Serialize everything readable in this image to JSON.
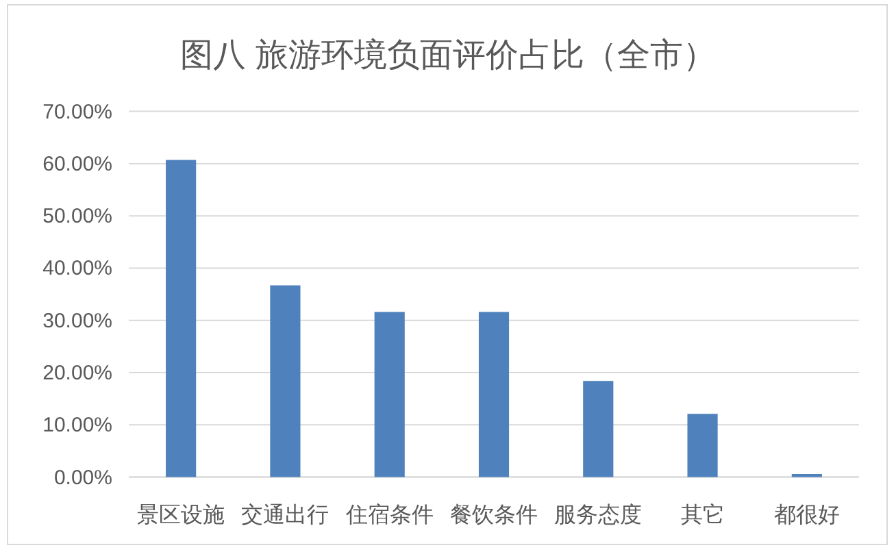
{
  "chart_data": {
    "type": "bar",
    "title": "图八  旅游环境负面评价占比（全市）",
    "categories": [
      "景区设施",
      "交通出行",
      "住宿条件",
      "餐饮条件",
      "服务态度",
      "其它",
      "都很好"
    ],
    "values": [
      60.7,
      36.7,
      31.6,
      31.6,
      18.4,
      12.1,
      0.6
    ],
    "color": "#4f81bd",
    "ylim": [
      0,
      70
    ],
    "yticks": [
      {
        "value": 0,
        "label": "0.00%"
      },
      {
        "value": 10,
        "label": "10.00%"
      },
      {
        "value": 20,
        "label": "20.00%"
      },
      {
        "value": 30,
        "label": "30.00%"
      },
      {
        "value": 40,
        "label": "40.00%"
      },
      {
        "value": 50,
        "label": "50.00%"
      },
      {
        "value": 60,
        "label": "60.00%"
      },
      {
        "value": 70,
        "label": "70.00%"
      }
    ],
    "grid": "y"
  }
}
